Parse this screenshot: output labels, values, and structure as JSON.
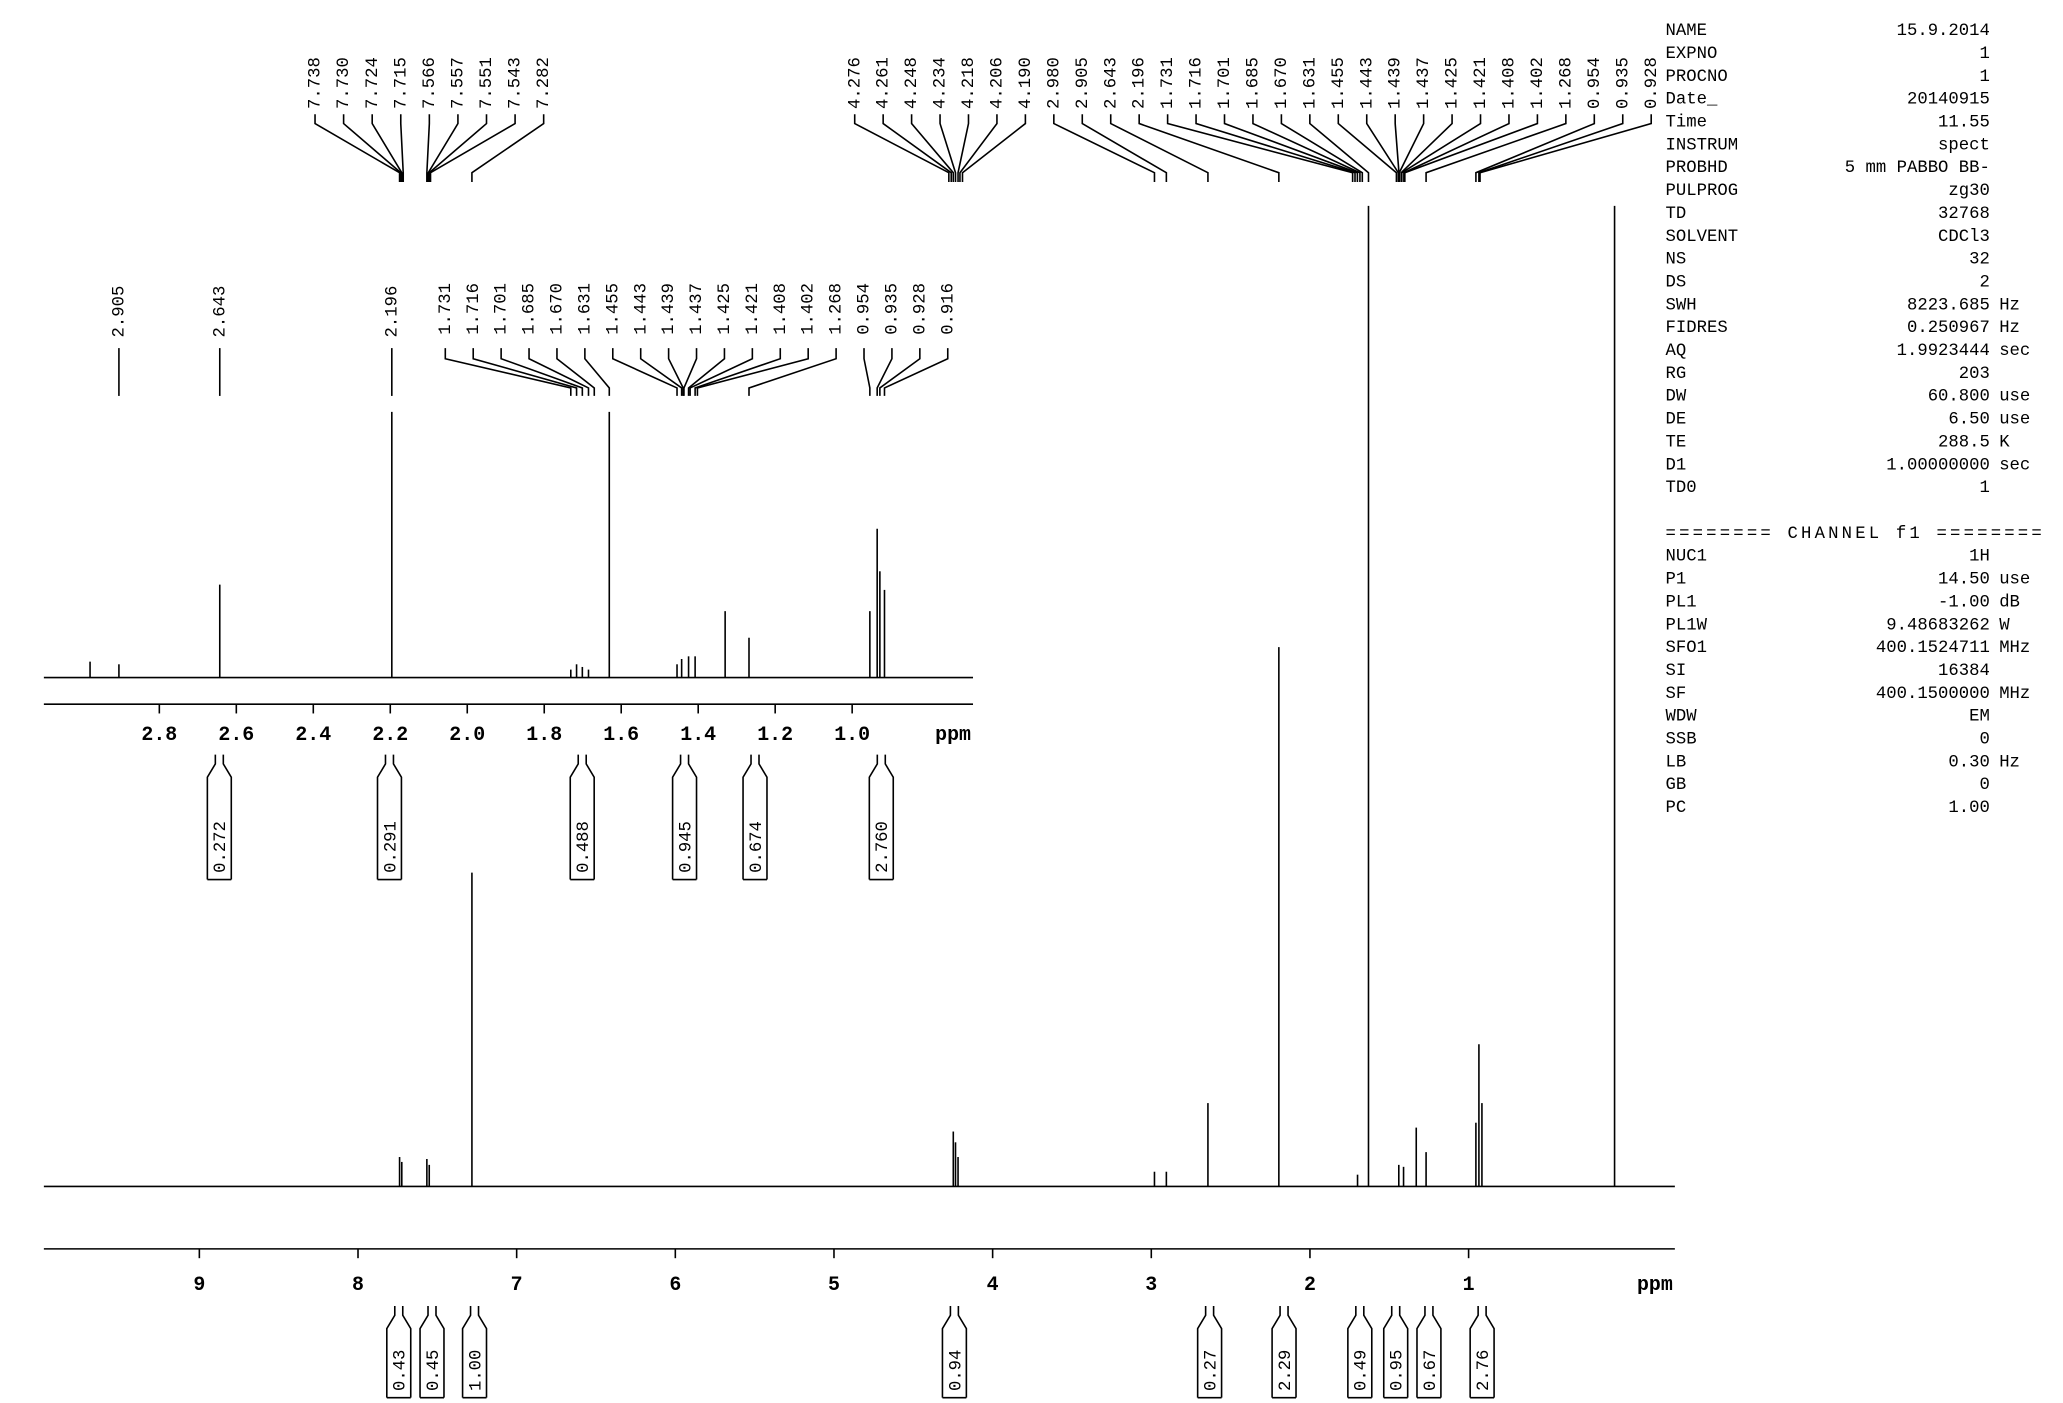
{
  "chart_data": [
    {
      "type": "stem",
      "color": "#000000",
      "x_label": "ppm",
      "xlim": [
        9.98,
        -0.3
      ],
      "ylim": [
        0,
        100
      ],
      "xticks": [
        9,
        8,
        7,
        6,
        5,
        4,
        3,
        2,
        1
      ],
      "x": [
        7.738,
        7.724,
        7.566,
        7.551,
        7.282,
        4.248,
        4.234,
        4.218,
        2.98,
        2.905,
        2.643,
        2.196,
        1.7,
        1.631,
        1.44,
        1.41,
        1.33,
        1.268,
        0.954,
        0.935,
        0.916,
        0.08
      ],
      "values": [
        3,
        2.5,
        2.8,
        2.2,
        32,
        5.6,
        4.5,
        3,
        1.5,
        1.5,
        8.5,
        55,
        1.2,
        100,
        2.2,
        2,
        6,
        3.5,
        6.5,
        14.5,
        8.5,
        100
      ],
      "peak_labels": [
        "7.738",
        "7.730",
        "7.724",
        "7.715",
        "7.566",
        "7.557",
        "7.551",
        "7.543",
        "7.282",
        "4.276",
        "4.261",
        "4.248",
        "4.234",
        "4.218",
        "4.206",
        "4.190",
        "2.980",
        "2.905",
        "2.643",
        "2.196",
        "1.731",
        "1.716",
        "1.701",
        "1.685",
        "1.670",
        "1.631",
        "1.455",
        "1.443",
        "1.439",
        "1.437",
        "1.425",
        "1.421",
        "1.408",
        "1.402",
        "1.268",
        "0.954",
        "0.935",
        "0.928"
      ],
      "integrals": [
        0.43,
        0.45,
        {
          "value": 1,
          "label": "1.00"
        },
        0.94,
        0.27,
        2.29,
        0.49,
        0.95,
        0.67,
        2.76
      ]
    },
    {
      "type": "stem",
      "color": "#000000",
      "x_label": "ppm",
      "xlim": [
        3.1,
        0.686
      ],
      "ylim": [
        0,
        100
      ],
      "xticks": [
        2.8,
        2.6,
        2.4,
        2.2,
        {
          "value": 2,
          "label": "2.0"
        },
        1.8,
        1.6,
        1.4,
        1.2,
        {
          "value": 1,
          "label": "1.0"
        }
      ],
      "x": [
        2.98,
        2.905,
        2.643,
        2.196,
        1.731,
        1.716,
        1.701,
        1.685,
        1.631,
        1.455,
        1.443,
        1.425,
        1.408,
        1.33,
        1.268,
        0.954,
        0.935,
        0.928,
        0.916
      ],
      "values": [
        6,
        5,
        35,
        100,
        3,
        5,
        4,
        3,
        100,
        5,
        7,
        8,
        8,
        25,
        15,
        25,
        56,
        40,
        33
      ],
      "peak_labels": [
        "2.905",
        "2.643",
        "2.196",
        "1.731",
        "1.716",
        "1.701",
        "1.685",
        "1.670",
        "1.631",
        "1.455",
        "1.443",
        "1.439",
        "1.437",
        "1.425",
        "1.421",
        "1.408",
        "1.402",
        "1.268",
        "0.954",
        "0.935",
        "0.928",
        "0.916"
      ],
      "integrals": [
        0.272,
        0.291,
        0.488,
        0.945,
        0.674,
        {
          "value": 2.76,
          "label": "2.760"
        }
      ]
    }
  ],
  "parameters": {
    "rows": [
      [
        "NAME",
        "15.9.2014"
      ],
      [
        "EXPNO",
        "1"
      ],
      [
        "PROCNO",
        "1"
      ],
      [
        "Date_",
        "20140915"
      ],
      [
        "Time",
        "11.55"
      ],
      [
        "INSTRUM",
        "spect"
      ],
      [
        "PROBHD",
        "5 mm PABBO BB-"
      ],
      [
        "PULPROG",
        "zg30"
      ],
      [
        "TD",
        "32768"
      ],
      [
        "SOLVENT",
        "CDCl3"
      ],
      [
        "NS",
        "32"
      ],
      [
        "DS",
        "2"
      ],
      [
        "SWH",
        "8223.685",
        "Hz"
      ],
      [
        "FIDRES",
        "0.250967",
        "Hz"
      ],
      [
        "AQ",
        "1.9923444",
        "sec"
      ],
      [
        "RG",
        "203"
      ],
      [
        "DW",
        "60.800",
        "use"
      ],
      [
        "DE",
        "6.50",
        "use"
      ],
      [
        "TE",
        "288.5",
        "K"
      ],
      [
        "D1",
        "1.00000000",
        "sec"
      ],
      [
        "TD0",
        "1"
      ]
    ],
    "channel_header": "======== CHANNEL f1 ========",
    "channel_rows": [
      [
        "NUC1",
        "1H"
      ],
      [
        "P1",
        "14.50",
        "use"
      ],
      [
        "PL1",
        "-1.00",
        "dB"
      ],
      [
        "PL1W",
        "9.48683262",
        "W"
      ],
      [
        "SFO1",
        "400.1524711",
        "MHz"
      ],
      [
        "SI",
        "16384"
      ],
      [
        "SF",
        "400.1500000",
        "MHz"
      ],
      [
        "WDW",
        "EM"
      ],
      [
        "SSB",
        "0"
      ],
      [
        "LB",
        "0.30",
        "Hz"
      ],
      [
        "GB",
        "0"
      ],
      [
        "PC",
        "1.00"
      ]
    ]
  }
}
